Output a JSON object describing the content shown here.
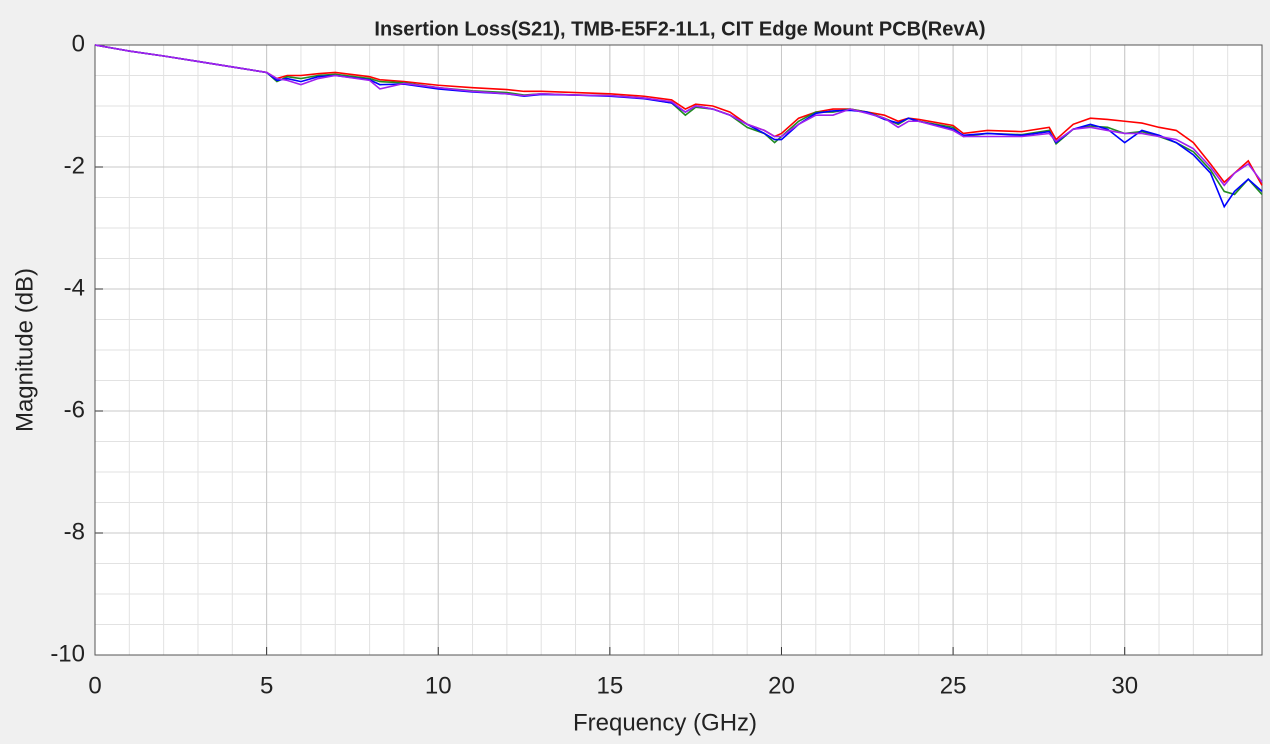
{
  "chart_data": {
    "type": "line",
    "title": "Insertion Loss(S21), TMB-E5F2-1L1, CIT Edge Mount PCB(RevA)",
    "xlabel": "Frequency (GHz)",
    "ylabel": "Magnitude (dB)",
    "xlim": [
      0,
      34
    ],
    "ylim": [
      -10,
      0
    ],
    "xticks": [
      0,
      5,
      10,
      15,
      20,
      25,
      30
    ],
    "yticks": [
      -10,
      -8,
      -6,
      -4,
      -2,
      0
    ],
    "grid": true,
    "minor_grid": true,
    "x": [
      0,
      1,
      2,
      3,
      4,
      5,
      5.3,
      5.6,
      6,
      6.5,
      7,
      8,
      8.3,
      9,
      10,
      11,
      12,
      12.5,
      13,
      14,
      15,
      16,
      16.8,
      17.2,
      17.5,
      18,
      18.5,
      19,
      19.5,
      19.8,
      20,
      20.5,
      21,
      21.5,
      22,
      22.5,
      23,
      23.4,
      23.7,
      24,
      25,
      25.3,
      26,
      27,
      27.8,
      28,
      28.5,
      29,
      29.5,
      30,
      30.5,
      31,
      31.5,
      32,
      32.5,
      32.9,
      33.2,
      33.6,
      34
    ],
    "series": [
      {
        "color": "#ff0000",
        "values": [
          0,
          -0.1,
          -0.18,
          -0.27,
          -0.36,
          -0.45,
          -0.55,
          -0.5,
          -0.5,
          -0.47,
          -0.45,
          -0.52,
          -0.57,
          -0.6,
          -0.66,
          -0.7,
          -0.73,
          -0.76,
          -0.76,
          -0.78,
          -0.8,
          -0.84,
          -0.9,
          -1.05,
          -0.97,
          -1.0,
          -1.1,
          -1.3,
          -1.4,
          -1.5,
          -1.45,
          -1.2,
          -1.1,
          -1.05,
          -1.05,
          -1.1,
          -1.15,
          -1.25,
          -1.2,
          -1.22,
          -1.32,
          -1.45,
          -1.4,
          -1.42,
          -1.35,
          -1.55,
          -1.3,
          -1.2,
          -1.22,
          -1.25,
          -1.28,
          -1.35,
          -1.4,
          -1.6,
          -1.95,
          -2.25,
          -2.1,
          -1.9,
          -2.3
        ]
      },
      {
        "color": "#228b22",
        "values": [
          0,
          -0.1,
          -0.18,
          -0.27,
          -0.36,
          -0.45,
          -0.6,
          -0.52,
          -0.55,
          -0.5,
          -0.48,
          -0.55,
          -0.6,
          -0.62,
          -0.7,
          -0.75,
          -0.78,
          -0.82,
          -0.8,
          -0.82,
          -0.83,
          -0.87,
          -0.95,
          -1.15,
          -1.02,
          -1.05,
          -1.15,
          -1.35,
          -1.45,
          -1.6,
          -1.5,
          -1.25,
          -1.1,
          -1.1,
          -1.05,
          -1.1,
          -1.2,
          -1.3,
          -1.2,
          -1.25,
          -1.35,
          -1.5,
          -1.45,
          -1.47,
          -1.4,
          -1.62,
          -1.38,
          -1.33,
          -1.35,
          -1.45,
          -1.42,
          -1.5,
          -1.6,
          -1.75,
          -2.05,
          -2.4,
          -2.45,
          -2.2,
          -2.45
        ]
      },
      {
        "color": "#0000ff",
        "values": [
          0,
          -0.1,
          -0.18,
          -0.27,
          -0.36,
          -0.45,
          -0.58,
          -0.55,
          -0.6,
          -0.52,
          -0.5,
          -0.57,
          -0.65,
          -0.64,
          -0.72,
          -0.77,
          -0.8,
          -0.84,
          -0.81,
          -0.82,
          -0.84,
          -0.88,
          -0.95,
          -1.1,
          -1.0,
          -1.05,
          -1.15,
          -1.3,
          -1.45,
          -1.55,
          -1.55,
          -1.3,
          -1.12,
          -1.08,
          -1.07,
          -1.1,
          -1.22,
          -1.28,
          -1.2,
          -1.25,
          -1.38,
          -1.48,
          -1.45,
          -1.48,
          -1.42,
          -1.6,
          -1.38,
          -1.3,
          -1.38,
          -1.6,
          -1.4,
          -1.48,
          -1.6,
          -1.8,
          -2.1,
          -2.65,
          -2.4,
          -2.2,
          -2.4
        ]
      },
      {
        "color": "#a020f0",
        "values": [
          0,
          -0.1,
          -0.18,
          -0.27,
          -0.36,
          -0.45,
          -0.55,
          -0.58,
          -0.65,
          -0.55,
          -0.5,
          -0.58,
          -0.72,
          -0.63,
          -0.7,
          -0.76,
          -0.8,
          -0.83,
          -0.8,
          -0.82,
          -0.83,
          -0.87,
          -0.93,
          -1.1,
          -1.0,
          -1.05,
          -1.15,
          -1.3,
          -1.4,
          -1.5,
          -1.5,
          -1.3,
          -1.15,
          -1.15,
          -1.05,
          -1.12,
          -1.2,
          -1.35,
          -1.25,
          -1.25,
          -1.4,
          -1.5,
          -1.5,
          -1.5,
          -1.45,
          -1.58,
          -1.38,
          -1.35,
          -1.4,
          -1.45,
          -1.45,
          -1.5,
          -1.55,
          -1.7,
          -2.0,
          -2.3,
          -2.1,
          -1.95,
          -2.25
        ]
      }
    ]
  }
}
